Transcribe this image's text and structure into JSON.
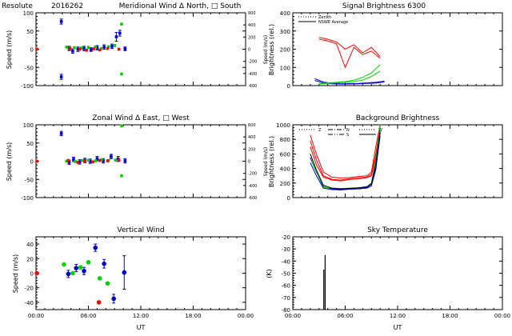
{
  "figure": {
    "site": "Resolute",
    "date": "2016262",
    "wavelength": "6300",
    "xlabel": "UT",
    "xticklabels": [
      "00:00",
      "06:00",
      "12:00",
      "18:00",
      "00:00"
    ]
  },
  "colors": {
    "red": "#ff0000",
    "green": "#00d000",
    "blue": "#0000cc",
    "black": "#000000"
  },
  "chart_data": [
    {
      "id": "meridional",
      "type": "scatter",
      "title": "Meridional Wind  Δ North, □ South",
      "ylabel": "Speed (m/s)",
      "ylim": [
        -100,
        100
      ],
      "yticks": [
        -100,
        -50,
        0,
        50,
        100
      ],
      "right_ylabel": "Speed (m/s)",
      "right_ylim": [
        -600,
        600
      ],
      "right_yticks": [
        -600,
        -400,
        -200,
        0,
        200,
        400,
        600
      ],
      "xlim": [
        0,
        24
      ],
      "series": [
        {
          "color": "blue",
          "marker": "square",
          "points": [
            {
              "x": 2.9,
              "y": 76,
              "err": 7
            },
            {
              "x": 2.9,
              "y": -76,
              "err": 7
            },
            {
              "x": 3.8,
              "y": 2,
              "err": 6
            },
            {
              "x": 4.2,
              "y": -5,
              "err": 6
            },
            {
              "x": 4.8,
              "y": 0,
              "err": 6
            },
            {
              "x": 5.5,
              "y": 2,
              "err": 6
            },
            {
              "x": 6.3,
              "y": -1,
              "err": 5
            },
            {
              "x": 7.0,
              "y": 4,
              "err": 6
            },
            {
              "x": 7.8,
              "y": 6,
              "err": 6
            },
            {
              "x": 8.7,
              "y": 8,
              "err": 6
            },
            {
              "x": 9.2,
              "y": 34,
              "err": 12
            },
            {
              "x": 9.6,
              "y": 44,
              "err": 8
            },
            {
              "x": 10.2,
              "y": 1,
              "err": 5
            }
          ]
        },
        {
          "color": "green",
          "marker": "square",
          "points": [
            {
              "x": 3.5,
              "y": 6
            },
            {
              "x": 4.4,
              "y": 4
            },
            {
              "x": 5.2,
              "y": 3
            },
            {
              "x": 6.0,
              "y": 5
            },
            {
              "x": 6.8,
              "y": 6
            },
            {
              "x": 7.5,
              "y": 2
            },
            {
              "x": 8.3,
              "y": 7
            },
            {
              "x": 9.0,
              "y": 10
            },
            {
              "x": 9.8,
              "y": 69
            },
            {
              "x": 9.8,
              "y": -68
            }
          ]
        },
        {
          "color": "red",
          "marker": "square",
          "points": [
            {
              "x": 0.1,
              "y": 0
            },
            {
              "x": 3.9,
              "y": 2
            },
            {
              "x": 5.0,
              "y": 0
            },
            {
              "x": 5.8,
              "y": -3
            },
            {
              "x": 6.6,
              "y": 1
            },
            {
              "x": 7.3,
              "y": -2
            },
            {
              "x": 8.2,
              "y": 2
            },
            {
              "x": 9.5,
              "y": 0
            }
          ]
        }
      ]
    },
    {
      "id": "signal",
      "type": "line",
      "title": "Signal Brightness      6300",
      "ylabel": "Brightness (rel.)",
      "ylim": [
        0,
        400
      ],
      "yticks": [
        0,
        100,
        200,
        300,
        400
      ],
      "xlim": [
        0,
        24
      ],
      "legend": [
        "Zenith",
        "NSWE Average"
      ],
      "series": [
        {
          "color": "red",
          "x": [
            3.0,
            4.0,
            5.0,
            6.0,
            7.0,
            8.0,
            9.0,
            10.0
          ],
          "y": [
            265,
            255,
            240,
            200,
            225,
            180,
            210,
            160
          ]
        },
        {
          "color": "red",
          "x": [
            3.0,
            4.0,
            5.0,
            6.0,
            7.0,
            8.0,
            9.0,
            10.0
          ],
          "y": [
            255,
            245,
            230,
            100,
            210,
            170,
            190,
            150
          ]
        },
        {
          "color": "blue",
          "x": [
            2.5,
            3.5,
            4.5,
            5.5,
            6.5,
            7.5,
            8.5,
            9.5,
            10.5
          ],
          "y": [
            38,
            20,
            12,
            10,
            11,
            12,
            15,
            18,
            25
          ]
        },
        {
          "color": "blue",
          "x": [
            2.5,
            3.5,
            4.5,
            5.5,
            6.5,
            7.5,
            8.5,
            9.5,
            10.5
          ],
          "y": [
            28,
            15,
            10,
            8,
            9,
            10,
            12,
            14,
            20
          ]
        },
        {
          "color": "green",
          "x": [
            3.0,
            4.0,
            5.0,
            6.0,
            7.0,
            8.0,
            9.0,
            10.0
          ],
          "y": [
            10,
            15,
            18,
            22,
            30,
            45,
            70,
            115
          ]
        },
        {
          "color": "green",
          "x": [
            3.0,
            4.0,
            5.0,
            6.0,
            7.0,
            8.0,
            9.0,
            10.0
          ],
          "y": [
            8,
            12,
            15,
            18,
            22,
            30,
            50,
            80
          ]
        }
      ]
    },
    {
      "id": "zonal",
      "type": "scatter",
      "title": "Zonal Wind     Δ East, □ West",
      "ylabel": "Speed (m/s)",
      "ylim": [
        -100,
        100
      ],
      "yticks": [
        -100,
        -50,
        0,
        50,
        100
      ],
      "right_ylabel": "Speed (m/s)",
      "right_ylim": [
        -600,
        600
      ],
      "right_yticks": [
        -600,
        -400,
        -200,
        0,
        200,
        400,
        600
      ],
      "xlim": [
        0,
        24
      ],
      "series": [
        {
          "color": "blue",
          "marker": "square",
          "points": [
            {
              "x": 2.9,
              "y": 76,
              "err": 6
            },
            {
              "x": 3.8,
              "y": -3,
              "err": 6
            },
            {
              "x": 4.3,
              "y": 5,
              "err": 6
            },
            {
              "x": 5.0,
              "y": -2,
              "err": 6
            },
            {
              "x": 5.6,
              "y": 2,
              "err": 6
            },
            {
              "x": 6.2,
              "y": 0,
              "err": 6
            },
            {
              "x": 7.0,
              "y": 7,
              "err": 6
            },
            {
              "x": 7.7,
              "y": 1,
              "err": 6
            },
            {
              "x": 8.6,
              "y": 13,
              "err": 6
            },
            {
              "x": 9.4,
              "y": 6,
              "err": 7
            },
            {
              "x": 10.2,
              "y": 1,
              "err": 6
            }
          ]
        },
        {
          "color": "green",
          "marker": "square",
          "points": [
            {
              "x": 3.5,
              "y": 0
            },
            {
              "x": 4.5,
              "y": -1
            },
            {
              "x": 5.3,
              "y": 2
            },
            {
              "x": 6.0,
              "y": 3
            },
            {
              "x": 6.8,
              "y": 1
            },
            {
              "x": 7.5,
              "y": 4
            },
            {
              "x": 8.3,
              "y": 2
            },
            {
              "x": 9.1,
              "y": 3
            },
            {
              "x": 9.8,
              "y": 97
            },
            {
              "x": 9.8,
              "y": -40
            }
          ]
        },
        {
          "color": "red",
          "marker": "square",
          "points": [
            {
              "x": 0.1,
              "y": 0
            },
            {
              "x": 3.7,
              "y": 2
            },
            {
              "x": 4.8,
              "y": -3
            },
            {
              "x": 5.6,
              "y": 1
            },
            {
              "x": 6.5,
              "y": -2
            },
            {
              "x": 7.3,
              "y": 2
            },
            {
              "x": 8.2,
              "y": 1
            },
            {
              "x": 9.5,
              "y": 3
            }
          ]
        }
      ]
    },
    {
      "id": "background",
      "type": "line",
      "title": "Background Brightness",
      "ylabel": "Brightness (rel.)",
      "ylim": [
        0,
        1000
      ],
      "yticks": [
        0,
        200,
        400,
        600,
        800,
        1000
      ],
      "xlim": [
        0,
        24
      ],
      "legend": [
        "Z",
        "N",
        "S",
        "W",
        "E"
      ],
      "series": [
        {
          "color": "red",
          "x": [
            2.0,
            2.7,
            3.5,
            4.5,
            5.5,
            6.5,
            7.5,
            8.5,
            9.0,
            9.5,
            10.0
          ],
          "y": [
            860,
            600,
            350,
            280,
            270,
            275,
            290,
            300,
            350,
            700,
            1000
          ]
        },
        {
          "color": "red",
          "x": [
            2.0,
            2.7,
            3.5,
            4.5,
            5.5,
            6.5,
            7.5,
            8.5,
            9.0,
            9.5,
            10.0
          ],
          "y": [
            780,
            520,
            300,
            250,
            240,
            260,
            270,
            285,
            320,
            600,
            980
          ]
        },
        {
          "color": "red",
          "x": [
            2.0,
            2.7,
            3.5,
            4.5,
            5.5,
            6.5,
            7.5,
            8.5,
            9.0,
            9.5,
            10.0
          ],
          "y": [
            700,
            450,
            280,
            240,
            230,
            250,
            255,
            275,
            300,
            550,
            950
          ]
        },
        {
          "color": "blue",
          "x": [
            2.0,
            2.7,
            3.5,
            4.5,
            5.5,
            6.5,
            7.5,
            8.5,
            9.0,
            9.5,
            10.0
          ],
          "y": [
            550,
            350,
            150,
            120,
            115,
            120,
            125,
            140,
            180,
            420,
            900
          ]
        },
        {
          "color": "blue",
          "x": [
            2.0,
            2.7,
            3.5,
            4.5,
            5.5,
            6.5,
            7.5,
            8.5,
            9.0,
            9.5,
            10.0
          ],
          "y": [
            480,
            300,
            130,
            110,
            105,
            115,
            120,
            130,
            160,
            380,
            850
          ]
        },
        {
          "color": "green",
          "x": [
            2.2,
            2.9,
            3.6,
            4.5,
            5.5,
            6.5,
            7.5,
            8.5,
            9.0,
            9.5,
            10.0
          ],
          "y": [
            500,
            300,
            140,
            130,
            125,
            130,
            135,
            150,
            200,
            520,
            1000
          ]
        },
        {
          "color": "black",
          "x": [
            2.0,
            2.7,
            3.5,
            4.5,
            5.5,
            6.5,
            7.5,
            8.5,
            9.0,
            9.5,
            10.0
          ],
          "y": [
            600,
            380,
            170,
            130,
            120,
            128,
            135,
            150,
            190,
            460,
            920
          ]
        }
      ]
    },
    {
      "id": "vertical",
      "type": "scatter",
      "title": "Vertical Wind",
      "ylabel": "Speed (m/s)",
      "ylim": [
        -50,
        50
      ],
      "yticks": [
        -40,
        -20,
        0,
        20,
        40
      ],
      "xlim": [
        0,
        24
      ],
      "series": [
        {
          "color": "blue",
          "marker": "circle",
          "points": [
            {
              "x": 3.7,
              "y": -1,
              "err": 5
            },
            {
              "x": 4.6,
              "y": 7,
              "err": 5
            },
            {
              "x": 5.5,
              "y": 3,
              "err": 5
            },
            {
              "x": 6.8,
              "y": 35,
              "err": 5
            },
            {
              "x": 7.8,
              "y": 13,
              "err": 6
            },
            {
              "x": 8.9,
              "y": -35,
              "err": 6
            },
            {
              "x": 10.1,
              "y": 1,
              "err": 23
            }
          ]
        },
        {
          "color": "green",
          "marker": "circle",
          "points": [
            {
              "x": 3.2,
              "y": 12
            },
            {
              "x": 4.2,
              "y": 0
            },
            {
              "x": 5.1,
              "y": 8
            },
            {
              "x": 6.0,
              "y": 15
            },
            {
              "x": 7.3,
              "y": -7
            },
            {
              "x": 8.2,
              "y": -14
            }
          ]
        },
        {
          "color": "red",
          "marker": "circle",
          "points": [
            {
              "x": 0.1,
              "y": 0
            },
            {
              "x": 7.2,
              "y": -40
            }
          ]
        }
      ]
    },
    {
      "id": "sky",
      "type": "bar",
      "title": "Sky Temperature",
      "ylabel": "(K)",
      "ylim": [
        -80,
        -20
      ],
      "yticks": [
        -80,
        -70,
        -60,
        -50,
        -40,
        -30,
        -20
      ],
      "xlim": [
        0,
        24
      ],
      "series": [
        {
          "color": "black",
          "x": [
            3.55,
            3.7
          ],
          "y": [
            -47,
            -35
          ]
        }
      ]
    }
  ]
}
